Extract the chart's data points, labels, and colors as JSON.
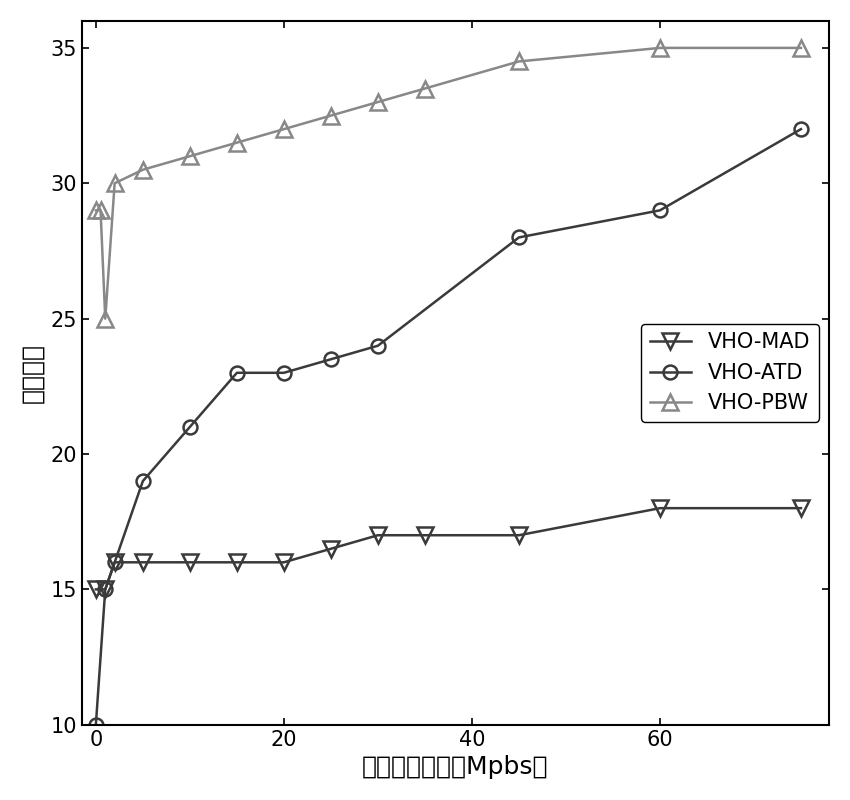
{
  "series": [
    {
      "label": "VHO-MAD",
      "color": "#3a3a3a",
      "marker": "v",
      "markersize": 11,
      "x": [
        0,
        1,
        2,
        5,
        10,
        15,
        20,
        25,
        30,
        35,
        45,
        60,
        75
      ],
      "y": [
        15,
        15,
        16,
        16,
        16,
        16,
        16,
        16.5,
        17,
        17,
        17,
        18,
        18
      ]
    },
    {
      "label": "VHO-ATD",
      "color": "#3a3a3a",
      "marker": "o",
      "markersize": 10,
      "x": [
        0,
        1,
        2,
        5,
        10,
        15,
        20,
        25,
        30,
        45,
        60,
        75
      ],
      "y": [
        10,
        15,
        16,
        19,
        21,
        23,
        23,
        23.5,
        24,
        28,
        29,
        32
      ]
    },
    {
      "label": "VHO-PBW",
      "color": "#888888",
      "marker": "^",
      "markersize": 11,
      "x": [
        0,
        0.5,
        1,
        2,
        5,
        10,
        15,
        20,
        25,
        30,
        35,
        45,
        60,
        75
      ],
      "y": [
        29,
        29,
        25,
        30,
        30.5,
        31,
        31.5,
        32,
        32.5,
        33,
        33.5,
        34.5,
        35,
        35
      ]
    }
  ],
  "xlabel": "终端带宽需求（Mpbs）",
  "ylabel": "切换次数",
  "xlim": [
    -1.5,
    78
  ],
  "ylim": [
    10,
    36
  ],
  "yticks": [
    10,
    15,
    20,
    25,
    30,
    35
  ],
  "xticks": [
    0,
    20,
    40,
    60
  ],
  "linewidth": 1.8,
  "legend_loc": "center right",
  "legend_fontsize": 15,
  "axis_fontsize": 18,
  "tick_fontsize": 15,
  "background_color": "#ffffff",
  "figure_color": "#ffffff"
}
